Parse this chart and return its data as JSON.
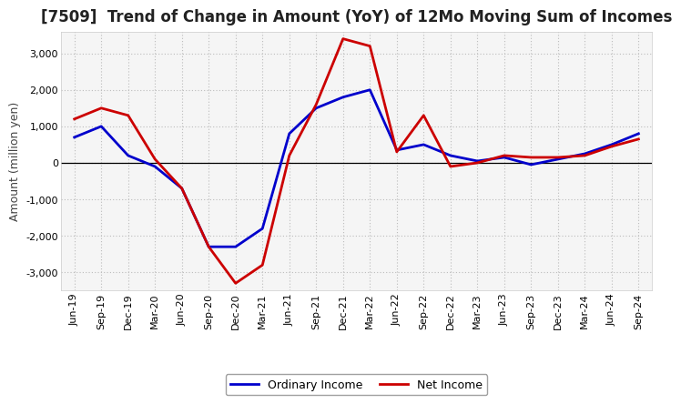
{
  "title": "[7509]  Trend of Change in Amount (YoY) of 12Mo Moving Sum of Incomes",
  "ylabel": "Amount (million yen)",
  "background_color": "#ffffff",
  "plot_background": "#f5f5f5",
  "x_labels": [
    "Jun-19",
    "Sep-19",
    "Dec-19",
    "Mar-20",
    "Jun-20",
    "Sep-20",
    "Dec-20",
    "Mar-21",
    "Jun-21",
    "Sep-21",
    "Dec-21",
    "Mar-22",
    "Jun-22",
    "Sep-22",
    "Dec-22",
    "Mar-23",
    "Jun-23",
    "Sep-23",
    "Dec-23",
    "Mar-24",
    "Jun-24",
    "Sep-24"
  ],
  "ordinary_income": [
    700,
    1000,
    200,
    -100,
    -700,
    -2300,
    -2300,
    -1800,
    800,
    1500,
    1800,
    2000,
    350,
    500,
    200,
    50,
    150,
    -50,
    100,
    250,
    500,
    800
  ],
  "net_income": [
    1200,
    1500,
    1300,
    100,
    -700,
    -2300,
    -3300,
    -2800,
    200,
    1600,
    3400,
    3200,
    300,
    1300,
    -100,
    0,
    200,
    150,
    150,
    200,
    450,
    650
  ],
  "ordinary_color": "#0000cc",
  "net_color": "#cc0000",
  "line_width": 2.0,
  "ylim": [
    -3500,
    3600
  ],
  "yticks": [
    -3000,
    -2000,
    -1000,
    0,
    1000,
    2000,
    3000
  ],
  "grid_color": "#bbbbbb",
  "legend_ordinary": "Ordinary Income",
  "legend_net": "Net Income",
  "title_fontsize": 12,
  "axis_fontsize": 9,
  "tick_fontsize": 8
}
